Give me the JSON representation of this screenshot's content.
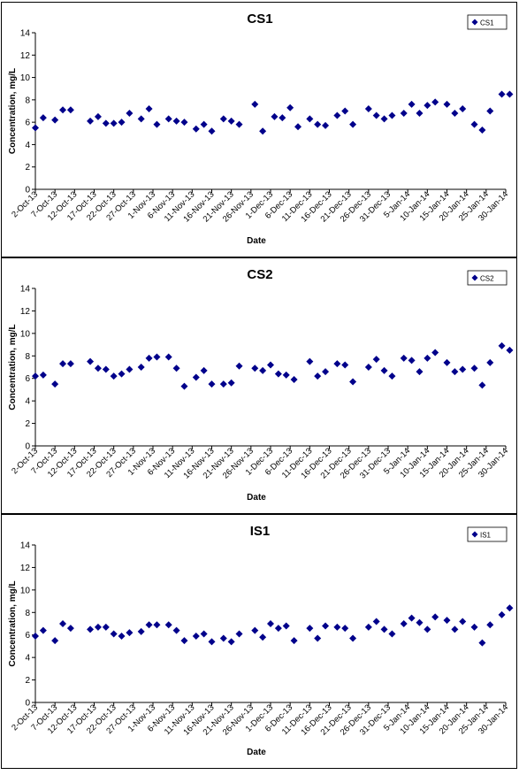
{
  "chart_data": [
    {
      "type": "scatter",
      "title": "CS1",
      "xlabel": "Date",
      "ylabel": "Concentration, mg/L",
      "ylim": [
        0,
        14
      ],
      "yticks": [
        0,
        2,
        4,
        6,
        8,
        10,
        12,
        14
      ],
      "xlim": [
        "2-Oct-13",
        "30-Jan-14"
      ],
      "xticks": [
        "2-Oct-13",
        "7-Oct-13",
        "12-Oct-13",
        "17-Oct-13",
        "22-Oct-13",
        "27-Oct-13",
        "1-Nov-13",
        "6-Nov-13",
        "11-Nov-13",
        "16-Nov-13",
        "21-Nov-13",
        "26-Nov-13",
        "1-Dec-13",
        "6-Dec-13",
        "11-Dec-13",
        "16-Dec-13",
        "21-Dec-13",
        "26-Dec-13",
        "31-Dec-13",
        "5-Jan-14",
        "10-Jan-14",
        "15-Jan-14",
        "20-Jan-14",
        "25-Jan-14",
        "30-Jan-14"
      ],
      "grid": false,
      "legend_position": "top-right",
      "color": "#00008B",
      "series": [
        {
          "name": "CS1",
          "x": [
            "2-Oct-13",
            "4-Oct-13",
            "7-Oct-13",
            "9-Oct-13",
            "11-Oct-13",
            "16-Oct-13",
            "18-Oct-13",
            "20-Oct-13",
            "22-Oct-13",
            "24-Oct-13",
            "26-Oct-13",
            "29-Oct-13",
            "31-Oct-13",
            "2-Nov-13",
            "5-Nov-13",
            "7-Nov-13",
            "9-Nov-13",
            "12-Nov-13",
            "14-Nov-13",
            "16-Nov-13",
            "19-Nov-13",
            "21-Nov-13",
            "23-Nov-13",
            "27-Nov-13",
            "29-Nov-13",
            "2-Dec-13",
            "4-Dec-13",
            "6-Dec-13",
            "8-Dec-13",
            "11-Dec-13",
            "13-Dec-13",
            "15-Dec-13",
            "18-Dec-13",
            "20-Dec-13",
            "22-Dec-13",
            "26-Dec-13",
            "28-Dec-13",
            "30-Dec-13",
            "1-Jan-14",
            "4-Jan-14",
            "6-Jan-14",
            "8-Jan-14",
            "10-Jan-14",
            "12-Jan-14",
            "15-Jan-14",
            "17-Jan-14",
            "19-Jan-14",
            "22-Jan-14",
            "24-Jan-14",
            "26-Jan-14",
            "29-Jan-14",
            "31-Jan-14"
          ],
          "y": [
            5.5,
            6.4,
            6.2,
            7.1,
            7.1,
            6.1,
            6.5,
            5.9,
            5.9,
            6.0,
            6.8,
            6.3,
            7.2,
            5.8,
            6.3,
            6.1,
            6.0,
            5.4,
            5.8,
            5.2,
            6.3,
            6.1,
            5.8,
            7.6,
            5.2,
            6.5,
            6.4,
            7.3,
            5.6,
            6.3,
            5.8,
            5.7,
            6.6,
            7.0,
            5.8,
            7.2,
            6.6,
            6.3,
            6.6,
            6.8,
            7.6,
            6.8,
            7.5,
            7.8,
            7.6,
            6.8,
            7.2,
            5.8,
            5.3,
            7.0,
            8.5,
            8.5
          ]
        }
      ]
    },
    {
      "type": "scatter",
      "title": "CS2",
      "xlabel": "Date",
      "ylabel": "Concentration, mg/L",
      "ylim": [
        0,
        14
      ],
      "yticks": [
        0,
        2,
        4,
        6,
        8,
        10,
        12,
        14
      ],
      "xlim": [
        "2-Oct-13",
        "30-Jan-14"
      ],
      "xticks": [
        "2-Oct-13",
        "7-Oct-13",
        "12-Oct-13",
        "17-Oct-13",
        "22-Oct-13",
        "27-Oct-13",
        "1-Nov-13",
        "6-Nov-13",
        "11-Nov-13",
        "16-Nov-13",
        "21-Nov-13",
        "26-Nov-13",
        "1-Dec-13",
        "6-Dec-13",
        "11-Dec-13",
        "16-Dec-13",
        "21-Dec-13",
        "26-Dec-13",
        "31-Dec-13",
        "5-Jan-14",
        "10-Jan-14",
        "15-Jan-14",
        "20-Jan-14",
        "25-Jan-14",
        "30-Jan-14"
      ],
      "grid": false,
      "legend_position": "top-right",
      "color": "#00008B",
      "series": [
        {
          "name": "CS2",
          "x": [
            "2-Oct-13",
            "4-Oct-13",
            "7-Oct-13",
            "9-Oct-13",
            "11-Oct-13",
            "16-Oct-13",
            "18-Oct-13",
            "20-Oct-13",
            "22-Oct-13",
            "24-Oct-13",
            "26-Oct-13",
            "29-Oct-13",
            "31-Oct-13",
            "2-Nov-13",
            "5-Nov-13",
            "7-Nov-13",
            "9-Nov-13",
            "12-Nov-13",
            "14-Nov-13",
            "16-Nov-13",
            "19-Nov-13",
            "21-Nov-13",
            "23-Nov-13",
            "27-Nov-13",
            "29-Nov-13",
            "1-Dec-13",
            "3-Dec-13",
            "5-Dec-13",
            "7-Dec-13",
            "11-Dec-13",
            "13-Dec-13",
            "15-Dec-13",
            "18-Dec-13",
            "20-Dec-13",
            "22-Dec-13",
            "26-Dec-13",
            "28-Dec-13",
            "30-Dec-13",
            "1-Jan-14",
            "4-Jan-14",
            "6-Jan-14",
            "8-Jan-14",
            "10-Jan-14",
            "12-Jan-14",
            "15-Jan-14",
            "17-Jan-14",
            "19-Jan-14",
            "22-Jan-14",
            "24-Jan-14",
            "26-Jan-14",
            "29-Jan-14",
            "31-Jan-14"
          ],
          "y": [
            6.2,
            6.3,
            5.5,
            7.3,
            7.3,
            7.5,
            6.9,
            6.8,
            6.2,
            6.4,
            6.8,
            7.0,
            7.8,
            7.9,
            7.9,
            6.9,
            5.3,
            6.1,
            6.7,
            5.5,
            5.5,
            5.6,
            7.1,
            6.9,
            6.7,
            7.2,
            6.4,
            6.3,
            5.9,
            7.5,
            6.2,
            6.6,
            7.3,
            7.2,
            5.7,
            7.0,
            7.7,
            6.7,
            6.2,
            7.8,
            7.6,
            6.6,
            7.8,
            8.3,
            7.4,
            6.6,
            6.8,
            6.9,
            5.4,
            7.4,
            8.9,
            8.5
          ]
        }
      ]
    },
    {
      "type": "scatter",
      "title": "IS1",
      "xlabel": "Date",
      "ylabel": "Concentration, mg/L",
      "ylim": [
        0,
        14
      ],
      "yticks": [
        0,
        2,
        4,
        6,
        8,
        10,
        12,
        14
      ],
      "xlim": [
        "2-Oct-13",
        "30-Jan-14"
      ],
      "xticks": [
        "2-Oct-13",
        "7-Oct-13",
        "12-Oct-13",
        "17-Oct-13",
        "22-Oct-13",
        "27-Oct-13",
        "1-Nov-13",
        "6-Nov-13",
        "11-Nov-13",
        "16-Nov-13",
        "21-Nov-13",
        "26-Nov-13",
        "1-Dec-13",
        "6-Dec-13",
        "11-Dec-13",
        "16-Dec-13",
        "21-Dec-13",
        "26-Dec-13",
        "31-Dec-13",
        "5-Jan-14",
        "10-Jan-14",
        "15-Jan-14",
        "20-Jan-14",
        "25-Jan-14",
        "30-Jan-14"
      ],
      "grid": false,
      "legend_position": "top-right",
      "color": "#00008B",
      "series": [
        {
          "name": "IS1",
          "x": [
            "2-Oct-13",
            "4-Oct-13",
            "7-Oct-13",
            "9-Oct-13",
            "11-Oct-13",
            "16-Oct-13",
            "18-Oct-13",
            "20-Oct-13",
            "22-Oct-13",
            "24-Oct-13",
            "26-Oct-13",
            "29-Oct-13",
            "31-Oct-13",
            "2-Nov-13",
            "5-Nov-13",
            "7-Nov-13",
            "9-Nov-13",
            "12-Nov-13",
            "14-Nov-13",
            "16-Nov-13",
            "19-Nov-13",
            "21-Nov-13",
            "23-Nov-13",
            "27-Nov-13",
            "29-Nov-13",
            "1-Dec-13",
            "3-Dec-13",
            "5-Dec-13",
            "7-Dec-13",
            "11-Dec-13",
            "13-Dec-13",
            "15-Dec-13",
            "18-Dec-13",
            "20-Dec-13",
            "22-Dec-13",
            "26-Dec-13",
            "28-Dec-13",
            "30-Dec-13",
            "1-Jan-14",
            "4-Jan-14",
            "6-Jan-14",
            "8-Jan-14",
            "10-Jan-14",
            "12-Jan-14",
            "15-Jan-14",
            "17-Jan-14",
            "19-Jan-14",
            "22-Jan-14",
            "24-Jan-14",
            "26-Jan-14",
            "29-Jan-14",
            "31-Jan-14"
          ],
          "y": [
            5.9,
            6.4,
            5.5,
            7.0,
            6.6,
            6.5,
            6.7,
            6.7,
            6.1,
            5.9,
            6.2,
            6.3,
            6.9,
            6.9,
            6.9,
            6.4,
            5.5,
            5.9,
            6.1,
            5.4,
            5.7,
            5.4,
            6.1,
            6.4,
            5.8,
            7.0,
            6.6,
            6.8,
            5.5,
            6.6,
            5.7,
            6.8,
            6.7,
            6.6,
            5.7,
            6.7,
            7.2,
            6.5,
            6.1,
            7.0,
            7.5,
            7.1,
            6.5,
            7.6,
            7.3,
            6.5,
            7.2,
            6.7,
            5.3,
            6.9,
            7.8,
            8.4
          ]
        }
      ]
    }
  ]
}
